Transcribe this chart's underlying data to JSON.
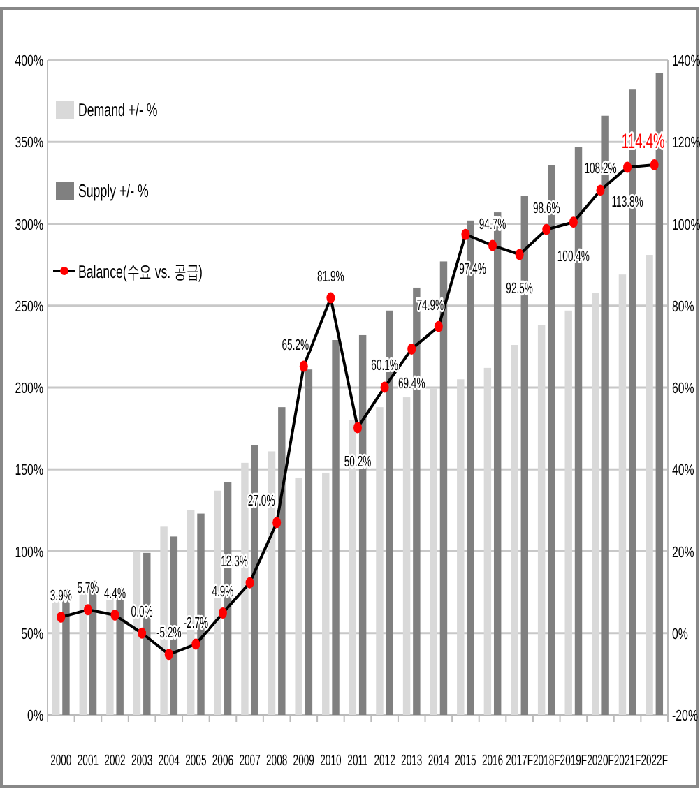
{
  "chart_data": {
    "type": "bar",
    "categories": [
      "2000",
      "2001",
      "2002",
      "2003",
      "2004",
      "2005",
      "2006",
      "2007",
      "2008",
      "2009",
      "2010",
      "2011",
      "2012",
      "2013",
      "2014",
      "2015",
      "2016",
      "2017F",
      "2018F",
      "2019F",
      "2020F",
      "2021F",
      "2022F"
    ],
    "series": [
      {
        "name": "Demand +/- %",
        "color": "#d9d9d9",
        "values": [
          73,
          76,
          74,
          100,
          115,
          125,
          137,
          154,
          161,
          145,
          148,
          180,
          188,
          194,
          200,
          205,
          212,
          226,
          238,
          247,
          258,
          269,
          281
        ]
      },
      {
        "name": "Supply +/- %",
        "color": "#808080",
        "values": [
          77,
          82,
          78,
          99,
          109,
          123,
          142,
          165,
          188,
          211,
          229,
          232,
          247,
          261,
          277,
          302,
          307,
          317,
          336,
          347,
          366,
          382,
          392
        ]
      },
      {
        "name": "Balance(수요 vs. 공급)",
        "type": "line",
        "axis": "y2",
        "color": "#000000",
        "marker": "circle",
        "values": [
          3.9,
          5.7,
          4.4,
          0.0,
          -5.2,
          -2.7,
          4.9,
          12.3,
          27.0,
          65.2,
          81.9,
          50.2,
          60.1,
          69.4,
          74.9,
          97.4,
          94.7,
          92.5,
          98.6,
          100.4,
          108.2,
          113.8,
          114.4
        ],
        "value_labels": [
          "3.9%",
          "5.7%",
          "4.4%",
          "0.0%",
          "-5.2%",
          "-2.7%",
          "4.9%",
          "12.3%",
          "27.0%",
          "65.2%",
          "81.9%",
          "50.2%",
          "60.1%",
          "69.4%",
          "74.9%",
          "97.4%",
          "94.7%",
          "92.5%",
          "98.6%",
          "100.4%",
          "108.2%",
          "113.8%",
          "114.4%"
        ]
      }
    ],
    "ylim": [
      0,
      400
    ],
    "yticks": [
      {
        "value": 0,
        "label": "0%"
      },
      {
        "value": 50,
        "label": "50%"
      },
      {
        "value": 100,
        "label": "100%"
      },
      {
        "value": 150,
        "label": "150%"
      },
      {
        "value": 200,
        "label": "200%"
      },
      {
        "value": 250,
        "label": "250%"
      },
      {
        "value": 300,
        "label": "300%"
      },
      {
        "value": 350,
        "label": "350%"
      },
      {
        "value": 400,
        "label": "400%"
      }
    ],
    "y2lim": [
      -20,
      140
    ],
    "y2ticks": [
      {
        "value": -20,
        "label": "-20%"
      },
      {
        "value": 0,
        "label": "0%"
      },
      {
        "value": 20,
        "label": "20%"
      },
      {
        "value": 40,
        "label": "40%"
      },
      {
        "value": 60,
        "label": "60%"
      },
      {
        "value": 80,
        "label": "80%"
      },
      {
        "value": 100,
        "label": "100%"
      },
      {
        "value": 120,
        "label": "120%"
      },
      {
        "value": 140,
        "label": "140%"
      }
    ],
    "grid": "y",
    "legend": "top left"
  }
}
